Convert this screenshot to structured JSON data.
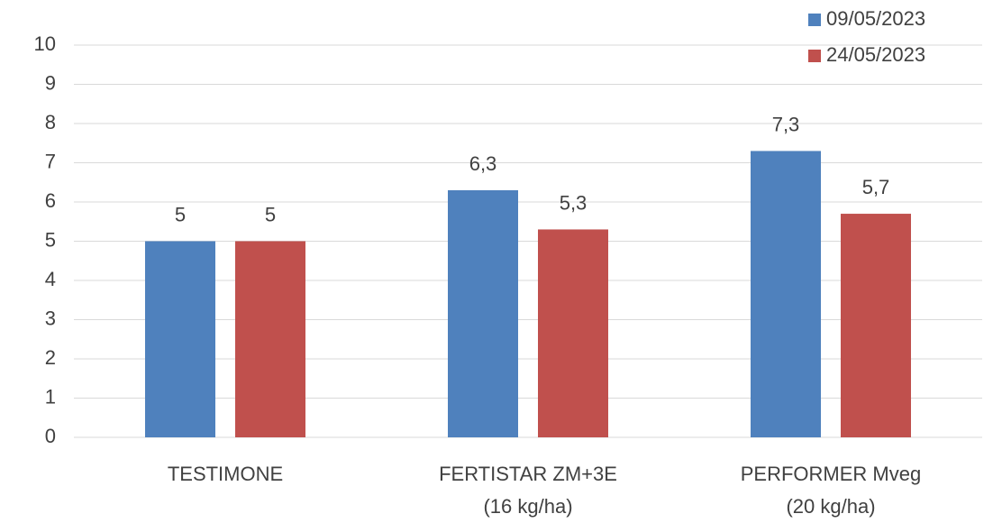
{
  "chart_data": {
    "type": "bar",
    "categories": [
      [
        "TESTIMONE"
      ],
      [
        "FERTISTAR ZM+3E",
        "(16 kg/ha)"
      ],
      [
        "PERFORMER Mveg",
        "(20 kg/ha)"
      ]
    ],
    "series": [
      {
        "name": "09/05/2023",
        "color": "#4f81bd",
        "values": [
          5,
          6.3,
          7.3
        ],
        "value_labels": [
          "5",
          "6,3",
          "7,3"
        ]
      },
      {
        "name": "24/05/2023",
        "color": "#c0504d",
        "values": [
          5,
          5.3,
          5.7
        ],
        "value_labels": [
          "5",
          "5,3",
          "5,7"
        ]
      }
    ],
    "ylim": [
      0,
      10
    ],
    "yticks": [
      0,
      1,
      2,
      3,
      4,
      5,
      6,
      7,
      8,
      9,
      10
    ],
    "grid": true,
    "legend": "top-right"
  }
}
